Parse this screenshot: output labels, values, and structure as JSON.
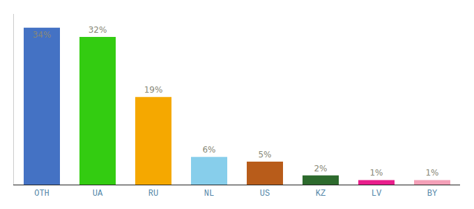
{
  "chart_data": {
    "type": "bar",
    "categories": [
      "OTH",
      "UA",
      "RU",
      "NL",
      "US",
      "KZ",
      "LV",
      "BY"
    ],
    "values": [
      34,
      32,
      19,
      6,
      5,
      2,
      1,
      1
    ],
    "value_labels": [
      "34%",
      "32%",
      "19%",
      "6%",
      "5%",
      "2%",
      "1%",
      "1%"
    ],
    "colors": [
      "#4472c4",
      "#33cc11",
      "#f5a800",
      "#87ceeb",
      "#b85c1a",
      "#2d6a2d",
      "#e91e8c",
      "#f4a0b8"
    ],
    "ylim": [
      0,
      37
    ],
    "data_labels": true,
    "tick_labels": "x",
    "grid": false
  }
}
